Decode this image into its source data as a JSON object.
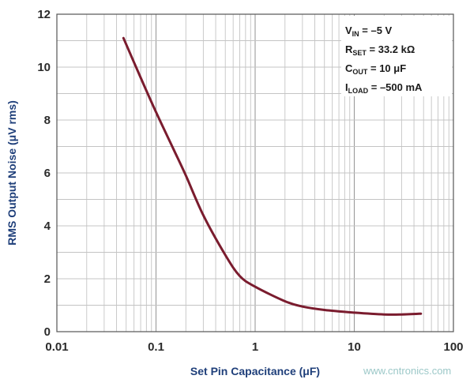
{
  "chart_data": {
    "type": "line",
    "title": "",
    "xlabel": "Set Pin Capacitance (μF)",
    "ylabel": "RMS Output Noise (μV rms)",
    "x_scale": "log",
    "xlim": [
      0.01,
      100
    ],
    "ylim": [
      0,
      12
    ],
    "grid": true,
    "x_tick_labels": [
      "0.01",
      "0.1",
      "1",
      "10",
      "100"
    ],
    "y_tick_labels": [
      "0",
      "2",
      "4",
      "6",
      "8",
      "10",
      "12"
    ],
    "series": [
      {
        "color": "#7a1c2e",
        "x": [
          0.047,
          0.07,
          0.1,
          0.15,
          0.2,
          0.3,
          0.5,
          0.7,
          1,
          2,
          3,
          5,
          10,
          20,
          30,
          47
        ],
        "y": [
          11.1,
          9.6,
          8.3,
          6.9,
          5.9,
          4.4,
          2.9,
          2.1,
          1.7,
          1.15,
          0.95,
          0.82,
          0.72,
          0.65,
          0.65,
          0.68
        ]
      }
    ],
    "legend_position": "top-right",
    "legend": [
      {
        "sym": "V",
        "sub": "IN",
        "rest": " = –5 V"
      },
      {
        "sym": "R",
        "sub": "SET",
        "rest": " = 33.2 kΩ"
      },
      {
        "sym": "C",
        "sub": "OUT",
        "rest": " = 10 μF"
      },
      {
        "sym": "I",
        "sub": "LOAD",
        "rest": " = –500 mA"
      }
    ]
  },
  "watermark": "www.cntronics.com"
}
